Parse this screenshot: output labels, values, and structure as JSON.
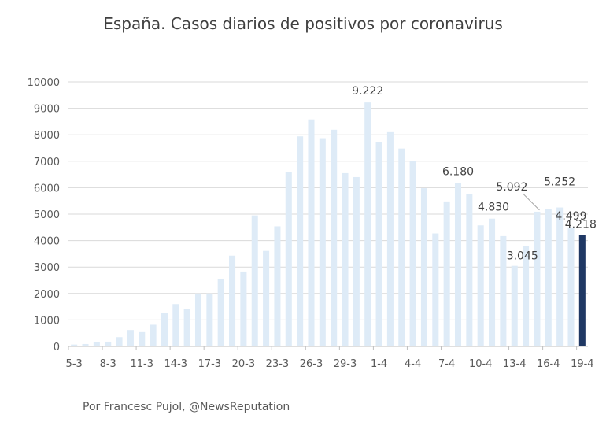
{
  "chart_data": {
    "type": "bar",
    "title": "España. Casos diarios de positivos por coronavirus",
    "xlabel": "",
    "ylabel": "",
    "ylim": [
      0,
      10000
    ],
    "yticks": [
      0,
      1000,
      2000,
      3000,
      4000,
      5000,
      6000,
      7000,
      8000,
      9000,
      10000
    ],
    "grid": true,
    "legend": "none",
    "categories": [
      "5-3",
      "6-3",
      "7-3",
      "8-3",
      "9-3",
      "10-3",
      "11-3",
      "12-3",
      "13-3",
      "14-3",
      "15-3",
      "16-3",
      "17-3",
      "18-3",
      "19-3",
      "20-3",
      "21-3",
      "22-3",
      "23-3",
      "24-3",
      "25-3",
      "26-3",
      "27-3",
      "28-3",
      "29-3",
      "30-3",
      "31-3",
      "1-4",
      "2-4",
      "3-4",
      "4-4",
      "5-4",
      "6-4",
      "7-4",
      "8-4",
      "9-4",
      "10-4",
      "11-4",
      "12-4",
      "13-4",
      "14-4",
      "15-4",
      "16-4",
      "17-4",
      "18-4",
      "19-4"
    ],
    "xtick_labels": [
      "5-3",
      "8-3",
      "11-3",
      "14-3",
      "17-3",
      "20-3",
      "23-3",
      "26-3",
      "29-3",
      "1-4",
      "4-4",
      "7-4",
      "10-4",
      "13-4",
      "16-4",
      "19-4"
    ],
    "values": [
      70,
      90,
      160,
      180,
      350,
      620,
      540,
      820,
      1260,
      1600,
      1400,
      2000,
      2000,
      2560,
      3430,
      2830,
      4950,
      3610,
      4540,
      6580,
      7940,
      8580,
      7870,
      8190,
      6550,
      6400,
      9222,
      7720,
      8100,
      7480,
      7010,
      5980,
      4270,
      5480,
      6180,
      5760,
      4576,
      4830,
      4170,
      3045,
      3800,
      5092,
      5183,
      5252,
      4499,
      4218
    ],
    "data_labels": [
      {
        "category": "31-3",
        "text": "9.222"
      },
      {
        "category": "8-4",
        "text": "6.180"
      },
      {
        "category": "11-4",
        "text": "4.830"
      },
      {
        "category": "13-4",
        "text": "3.045"
      },
      {
        "category": "15-4",
        "text": "5.092"
      },
      {
        "category": "17-4",
        "text": "5.252"
      },
      {
        "category": "18-4",
        "text": "4.499"
      },
      {
        "category": "19-4",
        "text": "4.218"
      }
    ],
    "colors": {
      "bar": "#deebf7",
      "highlight": "#1f3864",
      "grid": "#d9d9d9",
      "axis": "#bfbfbf"
    },
    "highlight_category": "19-4"
  },
  "credit": "Por Francesc Pujol, @NewsReputation"
}
